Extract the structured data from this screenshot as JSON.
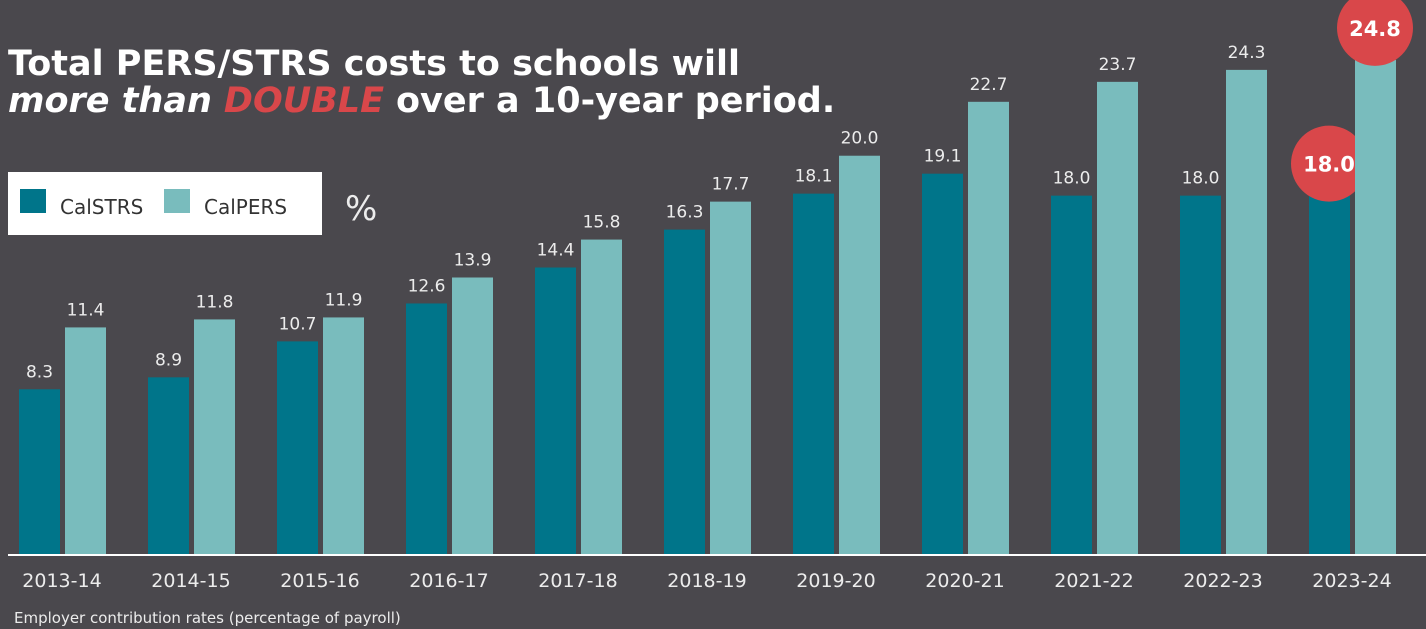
{
  "chart_data": {
    "type": "bar",
    "title": {
      "line1": "Total PERS/STRS costs to schools will",
      "line2": [
        "more than",
        "DOUBLE",
        "over a 10-year period."
      ]
    },
    "unit": "%",
    "note": "Employer contribution rates (percentage of payroll)",
    "categories": [
      "2013-14",
      "2014-15",
      "2015-16",
      "2016-17",
      "2017-18",
      "2018-19",
      "2019-20",
      "2020-21",
      "2021-22",
      "2022-23",
      "2023-24"
    ],
    "series": [
      {
        "name": "CalSTRS",
        "color": "#00758a",
        "values": [
          8.3,
          8.9,
          10.7,
          12.6,
          14.4,
          16.3,
          18.1,
          19.1,
          18.0,
          18.0,
          18.0
        ],
        "value_labels": [
          "8.3",
          "8.9",
          "10.7",
          "12.6",
          "14.4",
          "16.3",
          "18.1",
          "19.1",
          "18.0",
          "18.0",
          "18.0"
        ]
      },
      {
        "name": "CalPERS",
        "color": "#79bcbd",
        "values": [
          11.4,
          11.8,
          11.9,
          13.9,
          15.8,
          17.7,
          20.0,
          22.7,
          23.7,
          24.3,
          24.8
        ],
        "value_labels": [
          "11.4",
          "11.8",
          "11.9",
          "13.9",
          "15.8",
          "17.7",
          "20.0",
          "22.7",
          "23.7",
          "24.3",
          "24.8"
        ]
      }
    ],
    "highlight_index": 10,
    "highlight_color": "#d9474a",
    "ylim": [
      0,
      27.8
    ],
    "legend": "upper left"
  }
}
